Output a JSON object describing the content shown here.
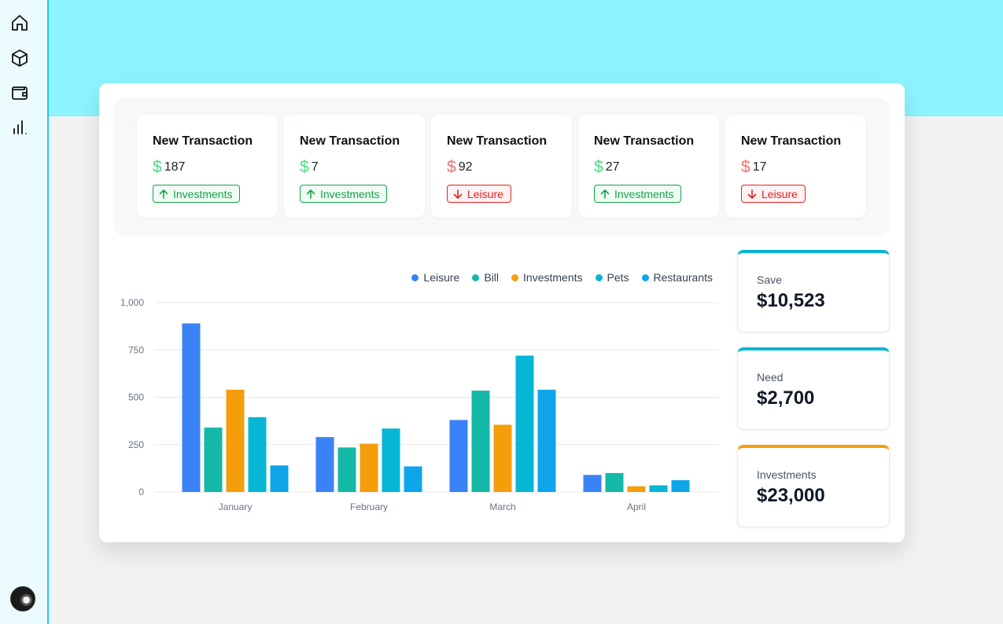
{
  "sidebar": {
    "icons": [
      "home-icon",
      "box-icon",
      "wallet-icon",
      "bar-chart-icon"
    ],
    "avatar": "avatar"
  },
  "transactions": [
    {
      "title": "New Transaction",
      "currency": "$",
      "amount": "187",
      "category": "Investments",
      "direction": "up",
      "color": "#16a34a",
      "bg": "#f0fdf4"
    },
    {
      "title": "New Transaction",
      "currency": "$",
      "amount": "7",
      "category": "Investments",
      "direction": "up",
      "color": "#16a34a",
      "bg": "#f0fdf4"
    },
    {
      "title": "New Transaction",
      "currency": "$",
      "amount": "92",
      "category": "Leisure",
      "direction": "down",
      "color": "#dc2626",
      "bg": "#fef2f2"
    },
    {
      "title": "New Transaction",
      "currency": "$",
      "amount": "27",
      "category": "Investments",
      "direction": "up",
      "color": "#16a34a",
      "bg": "#f0fdf4"
    },
    {
      "title": "New Transaction",
      "currency": "$",
      "amount": "17",
      "category": "Leisure",
      "direction": "down",
      "color": "#dc2626",
      "bg": "#fef2f2"
    }
  ],
  "stats": [
    {
      "label": "Save",
      "value": "$10,523",
      "accent": "#06b6d4"
    },
    {
      "label": "Need",
      "value": "$2,700",
      "accent": "#06b6d4"
    },
    {
      "label": "Investments",
      "value": "$23,000",
      "accent": "#f59e0b"
    }
  ],
  "chart_data": {
    "type": "bar",
    "categories": [
      "January",
      "February",
      "March",
      "April"
    ],
    "series": [
      {
        "name": "Leisure",
        "color": "#3b82f6",
        "values": [
          890,
          290,
          380,
          90
        ]
      },
      {
        "name": "Bill",
        "color": "#14b8a6",
        "values": [
          340,
          235,
          535,
          100
        ]
      },
      {
        "name": "Investments",
        "color": "#f59e0b",
        "values": [
          540,
          255,
          355,
          30
        ]
      },
      {
        "name": "Pets",
        "color": "#06b6d4",
        "values": [
          395,
          335,
          720,
          35
        ]
      },
      {
        "name": "Restaurants",
        "color": "#0ea5e9",
        "values": [
          140,
          135,
          540,
          62
        ]
      }
    ],
    "yticks": [
      "0",
      "250",
      "500",
      "750",
      "1,000"
    ],
    "ylim": [
      0,
      1000
    ],
    "legend_position": "top-right",
    "grid": true
  }
}
